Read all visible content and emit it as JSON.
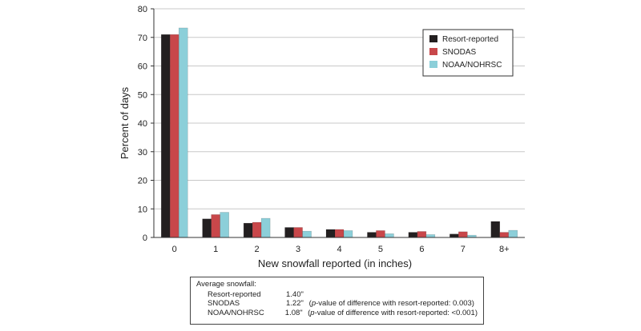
{
  "chart_data": {
    "type": "bar",
    "categories": [
      "0",
      "1",
      "2",
      "3",
      "4",
      "5",
      "6",
      "7",
      "8+"
    ],
    "series": [
      {
        "name": "Resort-reported",
        "color": "#231f20",
        "values": [
          71.0,
          6.5,
          5.0,
          3.5,
          2.8,
          1.8,
          1.8,
          1.2,
          5.6
        ]
      },
      {
        "name": "SNODAS",
        "color": "#c8474a",
        "values": [
          71.0,
          8.0,
          5.3,
          3.5,
          2.8,
          2.4,
          2.1,
          2.0,
          1.8
        ]
      },
      {
        "name": "NOAA/NOHRSC",
        "color": "#8ccfd9",
        "values": [
          73.3,
          8.8,
          6.7,
          2.2,
          2.4,
          1.3,
          1.0,
          0.8,
          2.5
        ]
      }
    ],
    "xlabel": "New snowfall reported (in inches)",
    "ylabel": "Percent of days",
    "ylim": [
      0,
      80
    ],
    "yticks": [
      0,
      10,
      20,
      30,
      40,
      50,
      60,
      70,
      80
    ],
    "grid": true,
    "legend_position": "top-right"
  },
  "summary": {
    "heading": "Average snowfall:",
    "rows": [
      {
        "label": "Resort-reported",
        "value": "1.40\"",
        "note_prefix": "",
        "note_italic": "",
        "note_rest": ""
      },
      {
        "label": "SNODAS",
        "value": "1.22\"",
        "note_prefix": "(",
        "note_italic": "p",
        "note_rest": "-value of difference with resort-reported: 0.003)"
      },
      {
        "label": "NOAA/NOHRSC",
        "value": "1.08\"",
        "note_prefix": "(",
        "note_italic": "p",
        "note_rest": "-value of difference with resort-reported: <0.001)"
      }
    ]
  }
}
